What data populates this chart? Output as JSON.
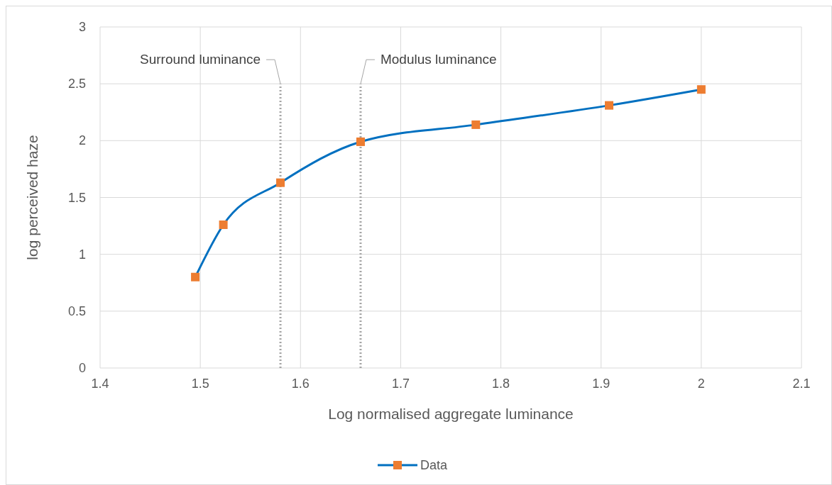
{
  "chart_data": {
    "type": "line",
    "xlabel": "Log normalised aggregate luminance",
    "ylabel": "log perceived haze",
    "xlim": [
      1.4,
      2.1
    ],
    "xticks": [
      1.4,
      1.5,
      1.6,
      1.7,
      1.8,
      1.9,
      2,
      2.1
    ],
    "ylim": [
      0,
      3
    ],
    "yticks": [
      0,
      0.5,
      1,
      1.5,
      2,
      2.5,
      3
    ],
    "grid": true,
    "legend": "bottom",
    "marker": "square",
    "line_style": "solid",
    "series": [
      {
        "name": "Data",
        "color": "#0070c0",
        "colors": [
          "#ed7d31",
          "#ed7d31",
          "#ed7d31",
          "#ed7d31",
          "#ed7d31",
          "#ed7d31",
          "#ed7d31"
        ],
        "x": [
          1.495,
          1.523,
          1.58,
          1.66,
          1.775,
          1.908,
          2.0
        ],
        "values": [
          0.8,
          1.26,
          1.63,
          1.99,
          2.14,
          2.31,
          2.45
        ]
      }
    ],
    "ref_lines": [
      {
        "axis": "x",
        "value": 1.58,
        "label": "Surround luminance",
        "color": "#a5a5a5",
        "line_style": "dotted"
      },
      {
        "axis": "x",
        "value": 1.66,
        "label": "Modulus luminance",
        "color": "#a5a5a5",
        "line_style": "dotted"
      }
    ]
  }
}
